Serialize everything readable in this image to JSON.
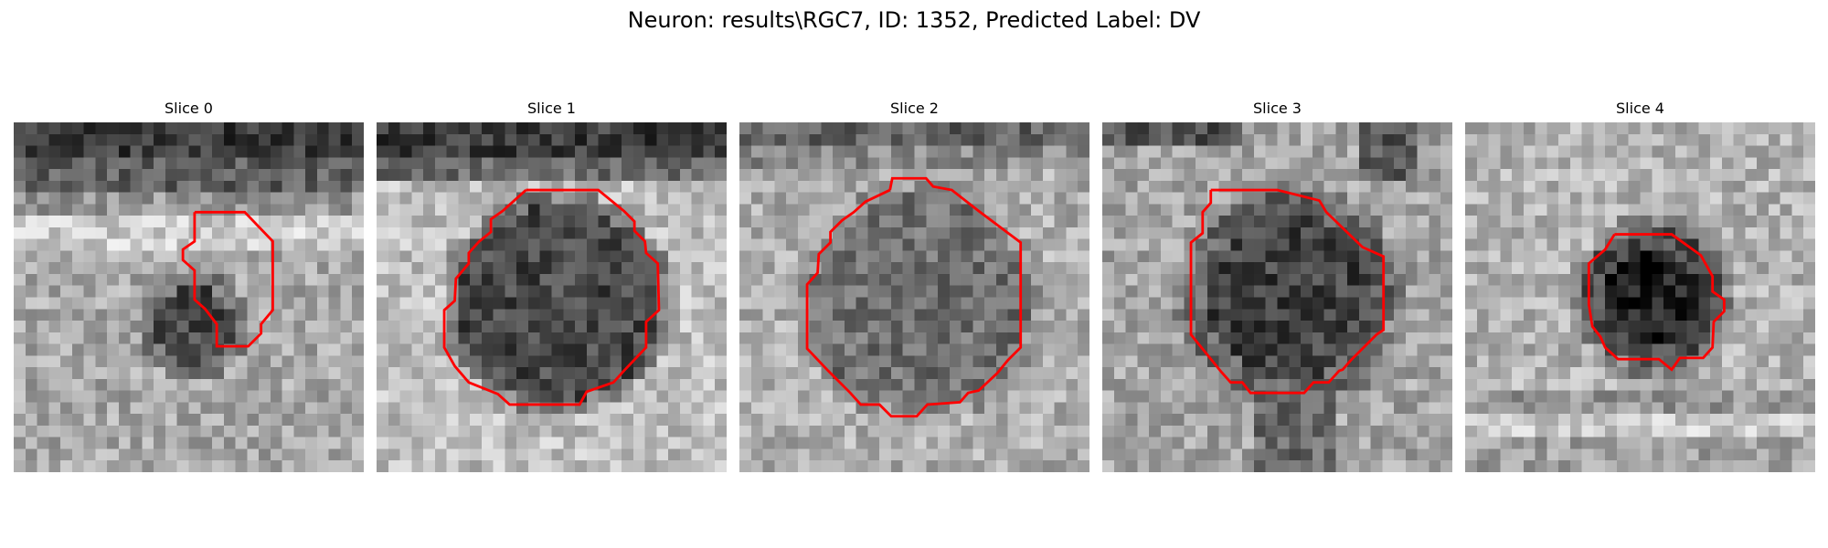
{
  "figure": {
    "title": "Neuron: results\\RGC7, ID: 1352, Predicted Label: DV"
  },
  "panels": [
    {
      "title": "Slice 0"
    },
    {
      "title": "Slice 1"
    },
    {
      "title": "Slice 2"
    },
    {
      "title": "Slice 3"
    },
    {
      "title": "Slice 4"
    }
  ],
  "colors": {
    "contour": "#ff0000",
    "colormap": "gray",
    "background": "#ffffff"
  }
}
